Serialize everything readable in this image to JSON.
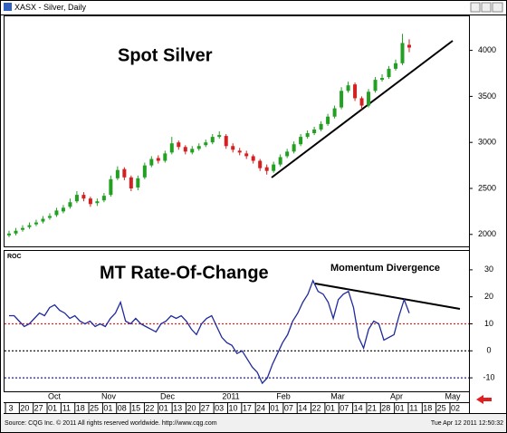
{
  "window_title": "XASX - Silver, Daily",
  "chart_data": [
    {
      "type": "candlestick",
      "label": "Spot Silver",
      "open": [
        1990,
        2010,
        2050,
        2080,
        2110,
        2140,
        2180,
        2210,
        2250,
        2300,
        2360,
        2430,
        2390,
        2340,
        2370,
        2430,
        2610,
        2710,
        2620,
        2510,
        2620,
        2750,
        2830,
        2800,
        2890,
        3000,
        2950,
        2890,
        2930,
        2970,
        3000,
        3060,
        3070,
        2960,
        2910,
        2880,
        2850,
        2800,
        2730,
        2690,
        2760,
        2850,
        2900,
        2980,
        3060,
        3100,
        3140,
        3200,
        3280,
        3380,
        3560,
        3630,
        3480,
        3400,
        3560,
        3680,
        3710,
        3800,
        3860,
        4060
      ],
      "high": [
        2040,
        2070,
        2100,
        2130,
        2160,
        2200,
        2230,
        2290,
        2320,
        2390,
        2470,
        2460,
        2410,
        2390,
        2450,
        2640,
        2740,
        2730,
        2640,
        2640,
        2780,
        2850,
        2860,
        2910,
        3060,
        3020,
        2970,
        2960,
        2990,
        3030,
        3090,
        3120,
        3090,
        2990,
        2940,
        2910,
        2870,
        2820,
        2760,
        2790,
        2870,
        2930,
        3010,
        3090,
        3130,
        3170,
        3230,
        3310,
        3400,
        3600,
        3660,
        3650,
        3500,
        3580,
        3710,
        3740,
        3830,
        3900,
        4180,
        4120
      ],
      "low": [
        1970,
        1990,
        2030,
        2060,
        2090,
        2120,
        2160,
        2190,
        2230,
        2280,
        2340,
        2360,
        2300,
        2310,
        2350,
        2410,
        2590,
        2590,
        2470,
        2480,
        2600,
        2730,
        2770,
        2780,
        2870,
        2920,
        2870,
        2870,
        2910,
        2950,
        2980,
        3040,
        2930,
        2890,
        2860,
        2820,
        2770,
        2690,
        2650,
        2670,
        2740,
        2830,
        2880,
        2960,
        3040,
        3080,
        3120,
        3180,
        3260,
        3360,
        3540,
        3450,
        3360,
        3380,
        3540,
        3660,
        3690,
        3780,
        3840,
        3980
      ],
      "close": [
        2010,
        2040,
        2070,
        2100,
        2130,
        2170,
        2200,
        2260,
        2290,
        2350,
        2430,
        2390,
        2330,
        2360,
        2420,
        2600,
        2700,
        2620,
        2500,
        2610,
        2750,
        2820,
        2800,
        2880,
        2990,
        2950,
        2900,
        2930,
        2960,
        3000,
        3060,
        3080,
        2960,
        2920,
        2890,
        2850,
        2800,
        2720,
        2690,
        2760,
        2840,
        2900,
        2980,
        3060,
        3100,
        3140,
        3200,
        3280,
        3370,
        3560,
        3620,
        3480,
        3400,
        3550,
        3680,
        3700,
        3800,
        3860,
        4080,
        4030
      ],
      "up_color": "#22a022",
      "down_color": "#d42020",
      "ylim": [
        1870,
        4370
      ],
      "yticks": [
        2000,
        2500,
        3000,
        3500,
        4000
      ]
    },
    {
      "type": "line",
      "axis_label": "ROC",
      "label": "MT Rate-Of-Change",
      "annotation": "Momentum Divergence",
      "values": [
        13,
        13,
        11,
        9,
        10,
        12,
        14,
        13,
        16,
        17,
        15,
        14,
        12,
        13,
        11,
        10,
        11,
        9,
        10,
        9,
        12,
        14,
        18,
        11,
        10,
        12,
        10,
        9,
        8,
        7,
        10,
        11,
        13,
        12,
        13,
        11,
        8,
        6,
        10,
        12,
        13,
        9,
        5,
        3,
        2,
        -1,
        0,
        -3,
        -6,
        -8,
        -12,
        -10,
        -5,
        -1,
        3,
        6,
        11,
        14,
        18,
        21,
        26,
        22,
        21,
        18,
        12,
        19,
        21,
        22,
        16,
        5,
        1,
        8,
        11,
        10,
        4,
        5,
        6,
        13,
        19,
        14
      ],
      "color": "#1f2a9c",
      "ylim": [
        -15,
        37
      ],
      "yticks": [
        -10,
        0,
        10,
        20,
        30
      ],
      "reference_lines": [
        {
          "value": 10,
          "color": "#e02020"
        },
        {
          "value": 0,
          "color": "#000000"
        },
        {
          "value": -10,
          "color": "#2020a0"
        }
      ]
    }
  ],
  "x_axis": {
    "months": [
      "Oct",
      "Nov",
      "Dec",
      "2011",
      "Feb",
      "Mar",
      "Apr",
      "May"
    ],
    "days": [
      "3",
      "20",
      "27",
      "01",
      "11",
      "18",
      "25",
      "01",
      "08",
      "15",
      "22",
      "01",
      "13",
      "20",
      "27",
      "03",
      "10",
      "17",
      "24",
      "01",
      "07",
      "14",
      "22",
      "01",
      "07",
      "14",
      "21",
      "28",
      "01",
      "11",
      "18",
      "25",
      "02"
    ]
  },
  "footer": {
    "source": "Source: CQG Inc. © 2011 All rights reserved worldwide. http://www.cqg.com",
    "timestamp": "Tue Apr 12 2011 12:50:32"
  }
}
